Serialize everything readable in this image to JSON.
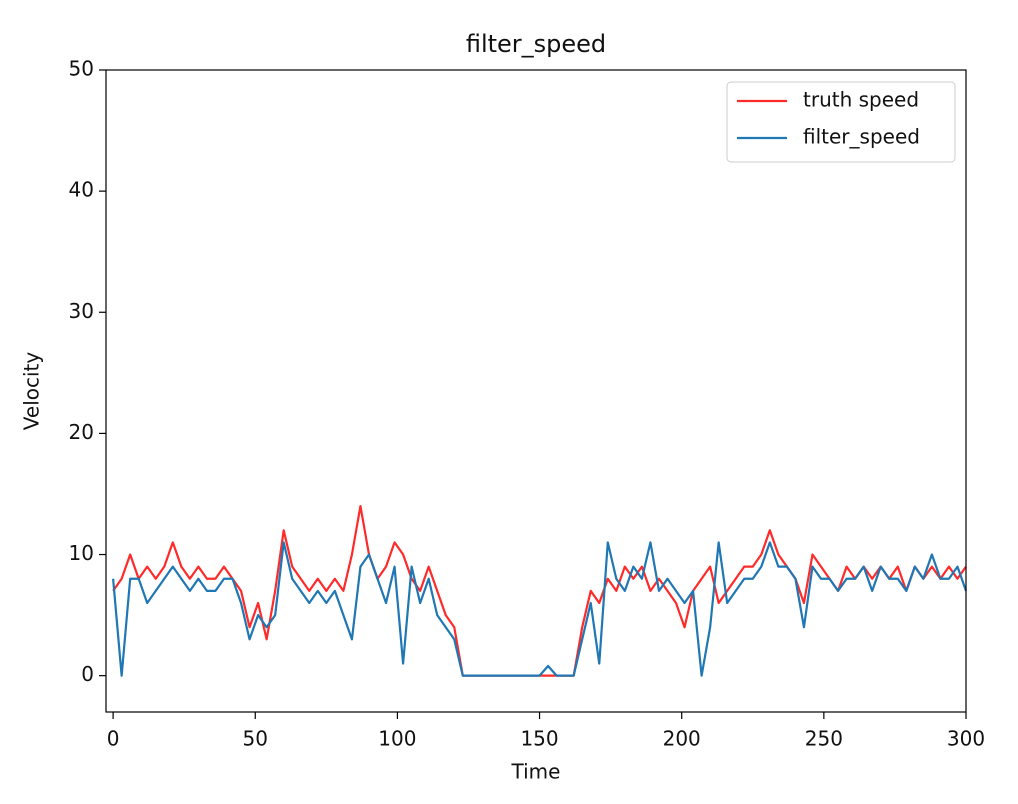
{
  "chart_data": {
    "type": "line",
    "title": "filter_speed",
    "x_label": "Time",
    "y_label": "Velocity",
    "x": [
      0,
      3,
      6,
      9,
      12,
      15,
      18,
      21,
      24,
      27,
      30,
      33,
      36,
      39,
      42,
      45,
      48,
      51,
      54,
      57,
      60,
      63,
      66,
      69,
      72,
      75,
      78,
      81,
      84,
      87,
      90,
      93,
      96,
      99,
      102,
      105,
      108,
      111,
      114,
      117,
      120,
      123,
      126,
      129,
      132,
      135,
      138,
      141,
      144,
      147,
      150,
      153,
      156,
      159,
      162,
      165,
      168,
      171,
      174,
      177,
      180,
      183,
      186,
      189,
      192,
      195,
      198,
      201,
      204,
      207,
      210,
      213,
      216,
      219,
      222,
      225,
      228,
      231,
      234,
      237,
      240,
      243,
      246,
      249,
      252,
      255,
      258,
      261,
      264,
      267,
      270,
      273,
      276,
      279,
      282,
      285,
      288,
      291,
      294,
      297,
      300
    ],
    "series": [
      {
        "name": "truth speed",
        "color": "#ff2a2a",
        "values": [
          7,
          8,
          10,
          8,
          9,
          8,
          9,
          11,
          9,
          8,
          9,
          8,
          8,
          9,
          8,
          7,
          4,
          6,
          3,
          7,
          12,
          9,
          8,
          7,
          8,
          7,
          8,
          7,
          10,
          14,
          10,
          8,
          9,
          11,
          10,
          8,
          7,
          9,
          7,
          5,
          4,
          0,
          0,
          0,
          0,
          0,
          0,
          0,
          0,
          0,
          0,
          0,
          0,
          0,
          0,
          4,
          7,
          6,
          8,
          7,
          9,
          8,
          9,
          7,
          8,
          7,
          6,
          4,
          7,
          8,
          9,
          6,
          7,
          8,
          9,
          9,
          10,
          12,
          10,
          9,
          8,
          6,
          10,
          9,
          8,
          7,
          9,
          8,
          9,
          8,
          9,
          8,
          9,
          7,
          9,
          8,
          9,
          8,
          9,
          8,
          9
        ]
      },
      {
        "name": "filter_speed",
        "color": "#1f77b4",
        "values": [
          8,
          0,
          8,
          8,
          6,
          7,
          8,
          9,
          8,
          7,
          8,
          7,
          7,
          8,
          8,
          6,
          3,
          5,
          4,
          5,
          11,
          8,
          7,
          6,
          7,
          6,
          7,
          5,
          3,
          9,
          10,
          8,
          6,
          9,
          1,
          9,
          6,
          8,
          5,
          4,
          3,
          0,
          0,
          0,
          0,
          0,
          0,
          0,
          0,
          0,
          0,
          0.8,
          0,
          0,
          0,
          3,
          6,
          1,
          11,
          8,
          7,
          9,
          8,
          11,
          7,
          8,
          7,
          6,
          7,
          0,
          4,
          11,
          6,
          7,
          8,
          8,
          9,
          11,
          9,
          9,
          8,
          4,
          9,
          8,
          8,
          7,
          8,
          8,
          9,
          7,
          9,
          8,
          8,
          7,
          9,
          8,
          10,
          8,
          8,
          9,
          7
        ]
      }
    ],
    "xlim": [
      -2.5,
      300
    ],
    "xticks": [
      0,
      50,
      100,
      150,
      200,
      250,
      300
    ],
    "ylim": [
      -3,
      50
    ],
    "yticks": [
      0,
      10,
      20,
      30,
      40,
      50
    ],
    "legend": "upper right"
  }
}
